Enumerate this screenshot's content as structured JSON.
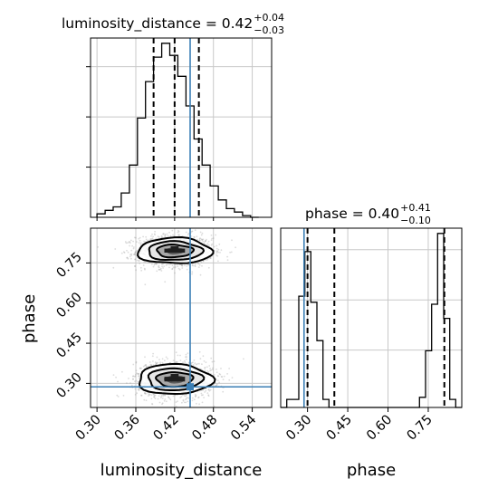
{
  "chart_data": [
    {
      "type": "histogram",
      "panel": "luminosity_distance marginal",
      "title": {
        "prefix": "luminosity_distance = ",
        "value": "0.42",
        "upper": "+0.04",
        "lower": "−0.03"
      },
      "x": [
        0.3,
        0.3125,
        0.325,
        0.3375,
        0.35,
        0.3625,
        0.375,
        0.3875,
        0.4,
        0.4125,
        0.425,
        0.4375,
        0.45,
        0.4625,
        0.475,
        0.4875,
        0.5,
        0.5125,
        0.525,
        0.5375,
        0.55
      ],
      "counts": [
        0.02,
        0.04,
        0.06,
        0.14,
        0.3,
        0.57,
        0.78,
        0.92,
        1.0,
        0.93,
        0.81,
        0.64,
        0.45,
        0.3,
        0.18,
        0.1,
        0.05,
        0.03,
        0.01,
        0.0
      ],
      "quantiles": [
        0.3875,
        0.42,
        0.4575
      ],
      "truth": 0.444,
      "xlim": [
        0.29,
        0.57
      ],
      "grid": true
    },
    {
      "type": "histogram",
      "panel": "phase marginal",
      "title": {
        "prefix": "phase = ",
        "value": "0.40",
        "upper": "+0.41",
        "lower": "−0.10"
      },
      "x": [
        0.2,
        0.2225,
        0.245,
        0.2675,
        0.29,
        0.3125,
        0.335,
        0.3575,
        0.38,
        0.4025,
        0.425,
        0.4475,
        0.47,
        0.4925,
        0.515,
        0.5375,
        0.56,
        0.5825,
        0.605,
        0.6275,
        0.65,
        0.6725,
        0.695,
        0.7175,
        0.74,
        0.7625,
        0.785,
        0.8075,
        0.83,
        0.8525
      ],
      "counts": [
        0.0,
        0.04,
        0.04,
        0.55,
        0.77,
        0.52,
        0.33,
        0.04,
        0.0,
        0.0,
        0.0,
        0.0,
        0.0,
        0.0,
        0.0,
        0.0,
        0.0,
        0.0,
        0.0,
        0.0,
        0.0,
        0.0,
        0.0,
        0.05,
        0.28,
        0.51,
        0.86,
        0.44,
        0.04,
        0.0
      ],
      "quantiles": [
        0.3,
        0.4,
        0.81
      ],
      "truth": 0.287,
      "xlim": [
        0.2,
        0.875
      ],
      "xticks": [
        "0.30",
        "0.45",
        "0.60",
        "0.75"
      ],
      "xlabel": "phase",
      "grid": true
    },
    {
      "type": "scatter",
      "panel": "2D posterior",
      "x_name": "luminosity_distance",
      "y_name": "phase",
      "xlabel": "luminosity_distance",
      "ylabel": "phase",
      "xlim": [
        0.29,
        0.57
      ],
      "ylim": [
        0.21,
        0.88
      ],
      "xticks": [
        "0.30",
        "0.36",
        "0.42",
        "0.48",
        "0.54"
      ],
      "yticks": [
        "0.30",
        "0.45",
        "0.60",
        "0.75"
      ],
      "clusters": [
        {
          "x_center": 0.42,
          "y_center": 0.795,
          "x_sd": 0.028,
          "y_sd": 0.03
        },
        {
          "x_center": 0.42,
          "y_center": 0.315,
          "x_sd": 0.028,
          "y_sd": 0.035
        }
      ],
      "truth": {
        "x": 0.444,
        "y": 0.287
      },
      "grid": true
    }
  ],
  "colors": {
    "truth": "#3b7fb5",
    "hist": "#000000",
    "grid": "#c8c8c8",
    "points": "#9a9a9a"
  }
}
